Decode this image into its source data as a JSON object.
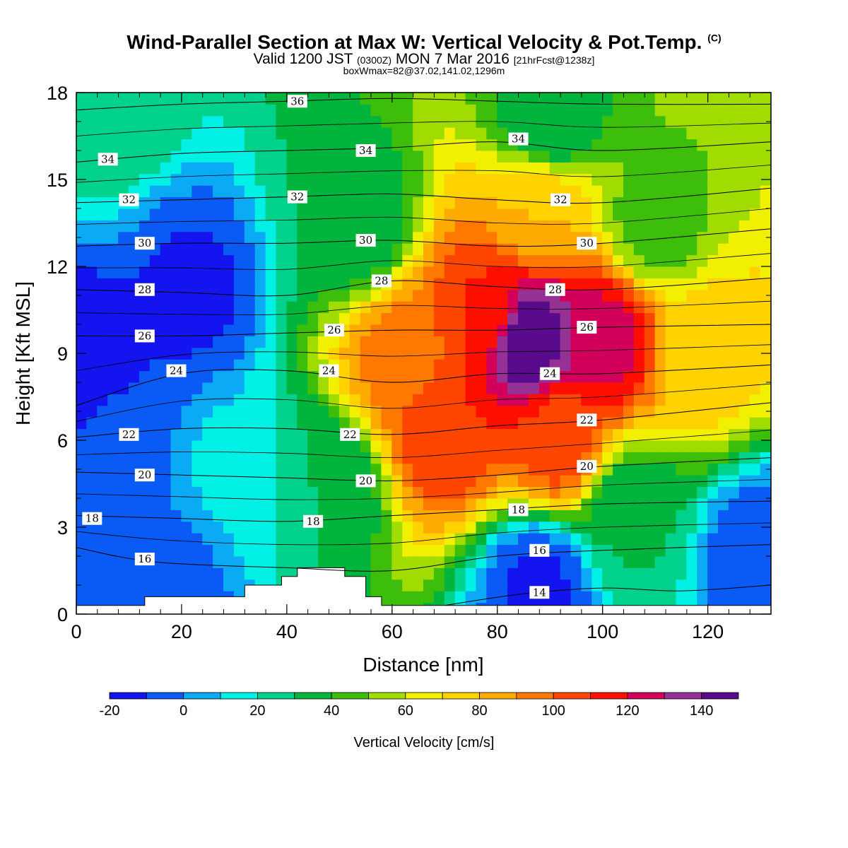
{
  "title": {
    "main": "Wind-Parallel Section at Max W: Vertical Velocity & Pot.Temp.",
    "copyright": "(C)",
    "valid_prefix": "Valid 1200 JST",
    "utc": "(0300Z)",
    "date": "MON 7 Mar 2016",
    "forecast": "[21hrFcst@1238z]",
    "box_info": "boxWmax=82@37.02,141.02,1296m"
  },
  "chart_data": {
    "type": "contour",
    "xlabel": "Distance [nm]",
    "ylabel": "Height [Kft MSL]",
    "xlim": [
      0,
      132
    ],
    "ylim": [
      0,
      18
    ],
    "x_ticks": [
      0,
      20,
      40,
      60,
      80,
      100,
      120
    ],
    "y_ticks": [
      0,
      3,
      6,
      9,
      12,
      15,
      18
    ],
    "colorbar": {
      "label": "Vertical Velocity [cm/s]",
      "levels": [
        -20,
        -10,
        0,
        10,
        20,
        30,
        40,
        50,
        60,
        70,
        80,
        90,
        100,
        110,
        120,
        130,
        140,
        150
      ],
      "tick_labels": [
        "-20",
        "0",
        "20",
        "40",
        "60",
        "80",
        "100",
        "120",
        "140"
      ],
      "colors": [
        "#1414f0",
        "#0a5af5",
        "#0aaaf5",
        "#00f0e6",
        "#00d28c",
        "#00b43c",
        "#3cbe0a",
        "#a0dc00",
        "#f0f000",
        "#ffd200",
        "#ffaa00",
        "#ff7800",
        "#ff4600",
        "#ff0f00",
        "#d2005a",
        "#963296",
        "#5a0a8c"
      ]
    },
    "vertical_velocity_cells": [
      {
        "x": 22,
        "z": 11.0,
        "w": -12
      },
      {
        "x": 2,
        "z": 8.5,
        "w": -16
      },
      {
        "x": 8,
        "z": 6.0,
        "w": -6
      },
      {
        "x": 16,
        "z": 1.0,
        "w": -8
      },
      {
        "x": 5,
        "z": 17.5,
        "w": 28
      },
      {
        "x": 30,
        "z": 5.0,
        "w": 12
      },
      {
        "x": 48,
        "z": 4.5,
        "w": 30
      },
      {
        "x": 53,
        "z": 13.5,
        "w": 30
      },
      {
        "x": 62,
        "z": 8.8,
        "w": 95
      },
      {
        "x": 70,
        "z": 6.5,
        "w": 110
      },
      {
        "x": 78,
        "z": 10.5,
        "w": 110
      },
      {
        "x": 86,
        "z": 9.5,
        "w": 150
      },
      {
        "x": 100,
        "z": 9.5,
        "w": 125
      },
      {
        "x": 92,
        "z": 6.0,
        "w": 105
      },
      {
        "x": 88,
        "z": 14.0,
        "w": 80
      },
      {
        "x": 120,
        "z": 9.0,
        "w": 75
      },
      {
        "x": 110,
        "z": 13.5,
        "w": 45
      },
      {
        "x": 90,
        "z": 17.0,
        "w": 30
      },
      {
        "x": 88,
        "z": 1.0,
        "w": -12
      },
      {
        "x": 130,
        "z": 2.0,
        "w": -8
      },
      {
        "x": 105,
        "z": 3.5,
        "w": 30
      }
    ],
    "theta_contours": [
      {
        "label": "14",
        "points": [
          [
            70,
            0.3
          ],
          [
            85,
            0.7
          ],
          [
            100,
            0.9
          ],
          [
            115,
            0.8
          ],
          [
            132,
            1.0
          ]
        ],
        "label_at": [
          88,
          0.75
        ]
      },
      {
        "label": "16",
        "points": [
          [
            0,
            2.3
          ],
          [
            15,
            1.8
          ],
          [
            40,
            1.6
          ],
          [
            60,
            1.5
          ],
          [
            80,
            2.0
          ],
          [
            100,
            2.2
          ],
          [
            132,
            2.4
          ]
        ],
        "label_at": [
          13,
          1.9
        ]
      },
      {
        "label": "18",
        "points": [
          [
            0,
            3.4
          ],
          [
            20,
            3.3
          ],
          [
            40,
            3.2
          ],
          [
            60,
            3.4
          ],
          [
            80,
            3.6
          ],
          [
            100,
            3.8
          ],
          [
            132,
            3.9
          ]
        ],
        "label_at": [
          3,
          3.3
        ]
      },
      {
        "label": "20",
        "points": [
          [
            0,
            4.9
          ],
          [
            20,
            4.8
          ],
          [
            40,
            4.7
          ],
          [
            60,
            4.6
          ],
          [
            80,
            4.8
          ],
          [
            100,
            5.1
          ],
          [
            132,
            5.4
          ]
        ],
        "label_at": [
          13,
          4.8
        ]
      },
      {
        "label": "22",
        "points": [
          [
            0,
            6.1
          ],
          [
            20,
            6.4
          ],
          [
            40,
            6.4
          ],
          [
            60,
            6.2
          ],
          [
            80,
            6.5
          ],
          [
            100,
            6.7
          ],
          [
            132,
            7.3
          ]
        ],
        "label_at": [
          10,
          6.2
        ]
      },
      {
        "label": "24",
        "points": [
          [
            0,
            7.2
          ],
          [
            20,
            8.3
          ],
          [
            40,
            8.4
          ],
          [
            60,
            8.0
          ],
          [
            80,
            8.3
          ],
          [
            100,
            8.3
          ],
          [
            132,
            8.6
          ]
        ],
        "label_at": [
          19,
          8.4
        ]
      },
      {
        "label": "26",
        "points": [
          [
            0,
            9.6
          ],
          [
            20,
            9.6
          ],
          [
            40,
            9.7
          ],
          [
            60,
            9.8
          ],
          [
            80,
            9.8
          ],
          [
            100,
            9.9
          ],
          [
            132,
            10.0
          ]
        ],
        "label_at": [
          13,
          9.6
        ]
      },
      {
        "label": "28",
        "points": [
          [
            0,
            11.2
          ],
          [
            20,
            11.1
          ],
          [
            40,
            11.0
          ],
          [
            60,
            11.5
          ],
          [
            80,
            11.3
          ],
          [
            100,
            11.2
          ],
          [
            132,
            11.6
          ]
        ],
        "label_at": [
          13,
          11.2
        ]
      },
      {
        "label": "30",
        "points": [
          [
            0,
            12.7
          ],
          [
            20,
            12.8
          ],
          [
            40,
            12.8
          ],
          [
            60,
            12.9
          ],
          [
            80,
            12.7
          ],
          [
            100,
            12.8
          ],
          [
            132,
            13.3
          ]
        ],
        "label_at": [
          13,
          12.8
        ]
      },
      {
        "label": "32",
        "points": [
          [
            0,
            14.2
          ],
          [
            20,
            14.3
          ],
          [
            40,
            14.4
          ],
          [
            60,
            14.5
          ],
          [
            80,
            14.3
          ],
          [
            100,
            14.2
          ],
          [
            132,
            14.7
          ]
        ],
        "label_at": [
          10,
          14.3
        ]
      },
      {
        "label": "34",
        "points": [
          [
            0,
            15.6
          ],
          [
            20,
            15.9
          ],
          [
            40,
            16.0
          ],
          [
            60,
            16.1
          ],
          [
            80,
            16.3
          ],
          [
            100,
            16.0
          ],
          [
            132,
            16.3
          ]
        ],
        "label_at": [
          6,
          15.7
        ]
      },
      {
        "label": "36",
        "points": [
          [
            0,
            17.4
          ],
          [
            20,
            17.6
          ],
          [
            40,
            17.7
          ],
          [
            60,
            17.8
          ],
          [
            80,
            17.7
          ],
          [
            100,
            17.6
          ],
          [
            132,
            17.6
          ]
        ],
        "label_at": [
          42,
          17.7
        ]
      }
    ],
    "extra_theta_labels": [
      {
        "label": "34",
        "x": 55,
        "z": 16.0
      },
      {
        "label": "34",
        "x": 84,
        "z": 16.4
      },
      {
        "label": "32",
        "x": 42,
        "z": 14.4
      },
      {
        "label": "32",
        "x": 92,
        "z": 14.3
      },
      {
        "label": "30",
        "x": 55,
        "z": 12.9
      },
      {
        "label": "30",
        "x": 97,
        "z": 12.8
      },
      {
        "label": "28",
        "x": 58,
        "z": 11.5
      },
      {
        "label": "28",
        "x": 91,
        "z": 11.2
      },
      {
        "label": "26",
        "x": 49,
        "z": 9.8
      },
      {
        "label": "26",
        "x": 97,
        "z": 9.9
      },
      {
        "label": "24",
        "x": 48,
        "z": 8.4
      },
      {
        "label": "24",
        "x": 90,
        "z": 8.3
      },
      {
        "label": "22",
        "x": 52,
        "z": 6.2
      },
      {
        "label": "22",
        "x": 97,
        "z": 6.7
      },
      {
        "label": "20",
        "x": 55,
        "z": 4.6
      },
      {
        "label": "20",
        "x": 97,
        "z": 5.1
      },
      {
        "label": "18",
        "x": 45,
        "z": 3.2
      },
      {
        "label": "18",
        "x": 84,
        "z": 3.6
      },
      {
        "label": "16",
        "x": 88,
        "z": 2.2
      }
    ],
    "terrain": [
      [
        0,
        0.3
      ],
      [
        13,
        0.3
      ],
      [
        13,
        0.6
      ],
      [
        32,
        0.6
      ],
      [
        32,
        1.0
      ],
      [
        39,
        1.0
      ],
      [
        39,
        1.3
      ],
      [
        42,
        1.3
      ],
      [
        42,
        1.6
      ],
      [
        51,
        1.6
      ],
      [
        51,
        1.3
      ],
      [
        55,
        1.3
      ],
      [
        55,
        0.6
      ],
      [
        58,
        0.6
      ],
      [
        58,
        0.3
      ],
      [
        132,
        0.3
      ]
    ]
  }
}
